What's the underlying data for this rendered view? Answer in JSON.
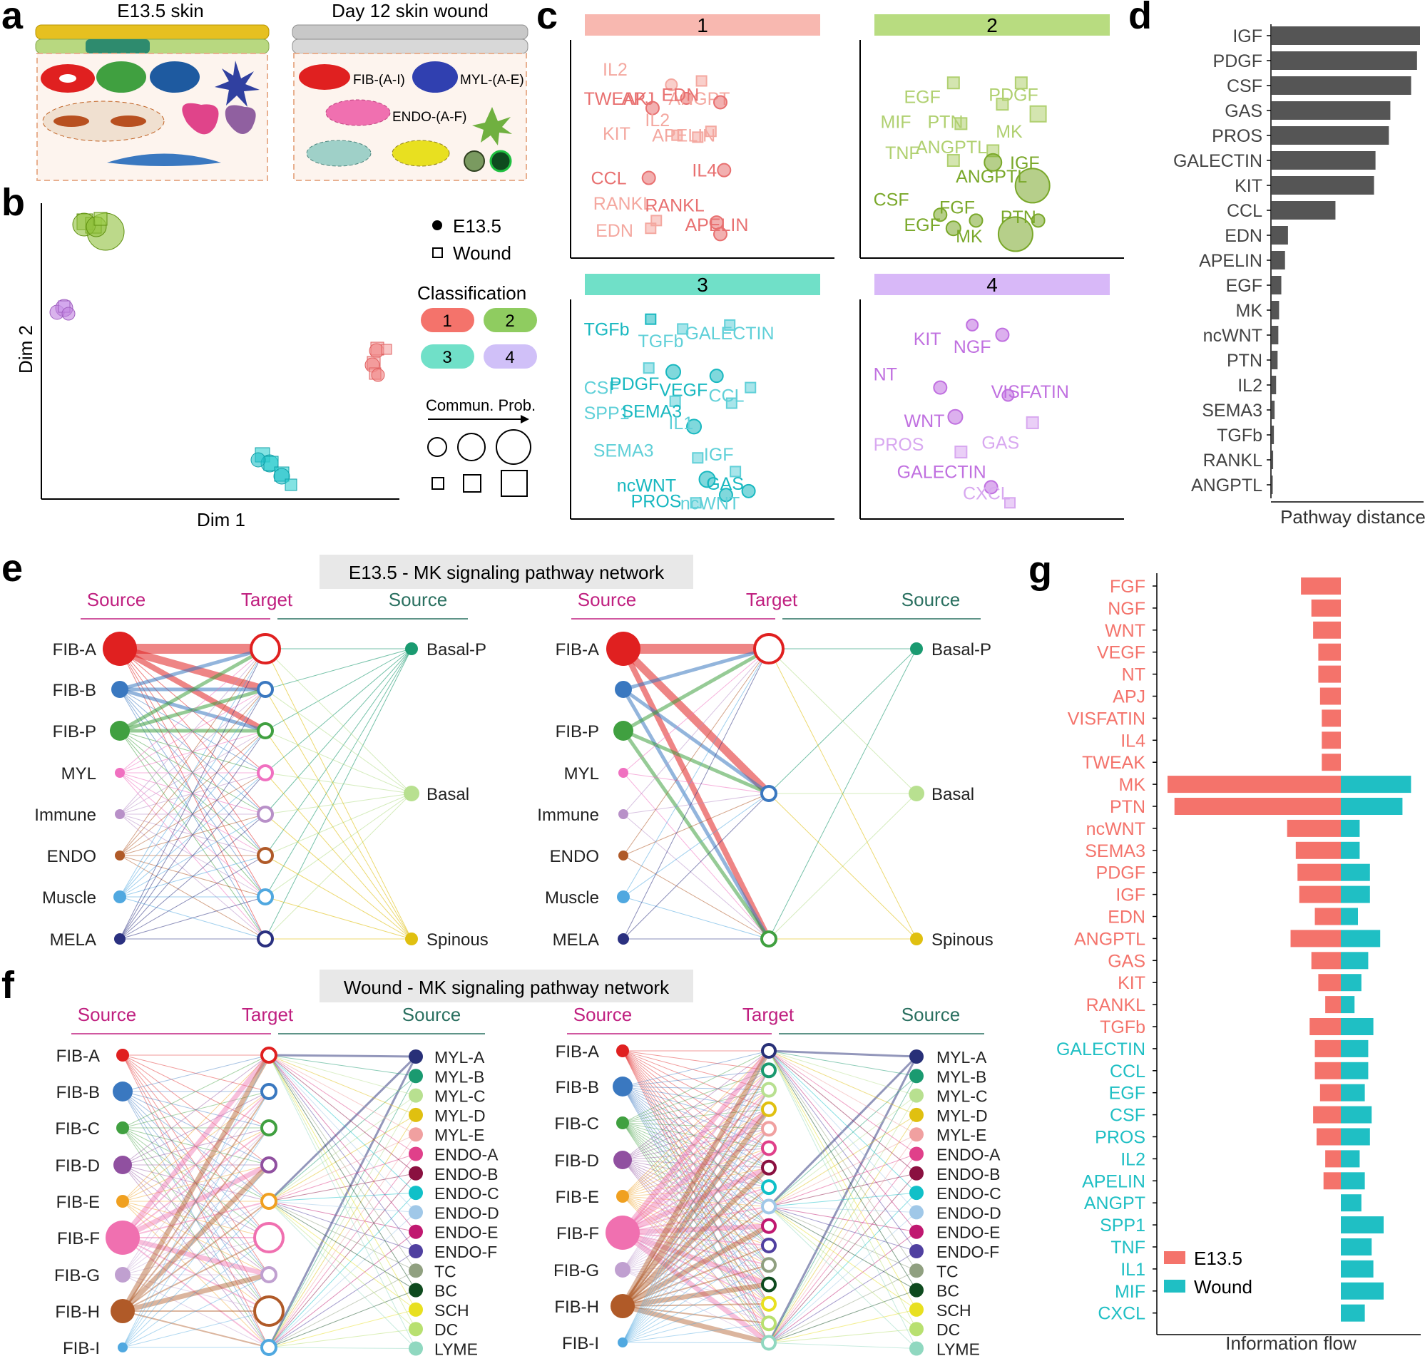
{
  "panels": {
    "a": "a",
    "b": "b",
    "c": "c",
    "d": "d",
    "e": "e",
    "f": "f",
    "g": "g"
  },
  "panel_a": {
    "left_title": "E13.5 skin",
    "right_title": "Day 12 skin wound",
    "labels": [
      "FIB-(A-I)",
      "MYL-(A-E)",
      "ENDO-(A-F)"
    ]
  },
  "panel_b": {
    "xlabel": "Dim 1",
    "ylabel": "Dim 2",
    "legend_e135": "E13.5",
    "legend_wound": "Wound",
    "classification_title": "Classification",
    "classes": [
      "1",
      "2",
      "3",
      "4"
    ],
    "comm_prob_title": "Commun. Prob."
  },
  "panel_c": {
    "groups": [
      {
        "title": "1",
        "color": "#f08080",
        "points": [
          {
            "label": "IL2",
            "shape": "circle",
            "light": true
          },
          {
            "label": "TWEAK",
            "shape": "circle",
            "light": false
          },
          {
            "label": "APJ",
            "shape": "circle",
            "light": false
          },
          {
            "label": "ANGPT",
            "shape": "square",
            "light": true
          },
          {
            "label": "EDN",
            "shape": "circle",
            "light": false
          },
          {
            "label": "IL2",
            "shape": "square",
            "light": true
          },
          {
            "label": "KIT",
            "shape": "square",
            "light": true
          },
          {
            "label": "APELIN",
            "shape": "square",
            "light": true
          },
          {
            "label": "CCL",
            "shape": "circle",
            "light": false
          },
          {
            "label": "IL4",
            "shape": "circle",
            "light": false
          },
          {
            "label": "RANKL",
            "shape": "square",
            "light": true
          },
          {
            "label": "RANKL",
            "shape": "circle",
            "light": false
          },
          {
            "label": "EDN",
            "shape": "square",
            "light": true
          },
          {
            "label": "APELIN",
            "shape": "circle",
            "light": false
          }
        ]
      },
      {
        "title": "2",
        "color": "#8fbf3c",
        "points": [
          {
            "label": "EGF",
            "shape": "square",
            "light": true
          },
          {
            "label": "PDGF",
            "shape": "square",
            "light": true
          },
          {
            "label": "MIF",
            "shape": "square",
            "light": true
          },
          {
            "label": "PTN",
            "shape": "square",
            "light": true
          },
          {
            "label": "MK",
            "shape": "square",
            "light": true
          },
          {
            "label": "TNF",
            "shape": "square",
            "light": true
          },
          {
            "label": "ANGPTL",
            "shape": "square",
            "light": true
          },
          {
            "label": "ANGPTL",
            "shape": "circle",
            "light": false
          },
          {
            "label": "IGF",
            "shape": "circle",
            "light": false
          },
          {
            "label": "CSF",
            "shape": "circle",
            "light": false
          },
          {
            "label": "FGF",
            "shape": "circle",
            "light": false
          },
          {
            "label": "EGF",
            "shape": "circle",
            "light": false
          },
          {
            "label": "PTN",
            "shape": "circle",
            "light": false
          },
          {
            "label": "MK",
            "shape": "circle",
            "light": false
          }
        ]
      },
      {
        "title": "3",
        "color": "#20c0c8",
        "points": [
          {
            "label": "TGFb",
            "shape": "square",
            "light": false
          },
          {
            "label": "TGFb",
            "shape": "square",
            "light": true
          },
          {
            "label": "GALECTIN",
            "shape": "square",
            "light": true
          },
          {
            "label": "CSF",
            "shape": "square",
            "light": true
          },
          {
            "label": "PDGF",
            "shape": "circle",
            "light": false
          },
          {
            "label": "VEGF",
            "shape": "circle",
            "light": false
          },
          {
            "label": "CCL",
            "shape": "square",
            "light": true
          },
          {
            "label": "SPP1",
            "shape": "square",
            "light": true
          },
          {
            "label": "SEMA3",
            "shape": "circle",
            "light": false
          },
          {
            "label": "IL1",
            "shape": "square",
            "light": true
          },
          {
            "label": "SEMA3",
            "shape": "square",
            "light": true
          },
          {
            "label": "IGF",
            "shape": "square",
            "light": true
          },
          {
            "label": "ncWNT",
            "shape": "circle",
            "light": false
          },
          {
            "label": "GAS",
            "shape": "circle",
            "light": false
          },
          {
            "label": "PROS",
            "shape": "circle",
            "light": false
          },
          {
            "label": "ncWNT",
            "shape": "square",
            "light": true
          }
        ]
      },
      {
        "title": "4",
        "color": "#c080e0",
        "points": [
          {
            "label": "KIT",
            "shape": "circle",
            "light": false
          },
          {
            "label": "NGF",
            "shape": "circle",
            "light": false
          },
          {
            "label": "NT",
            "shape": "circle",
            "light": false
          },
          {
            "label": "VISFATIN",
            "shape": "circle",
            "light": false
          },
          {
            "label": "WNT",
            "shape": "circle",
            "light": false
          },
          {
            "label": "GAS",
            "shape": "square",
            "light": true
          },
          {
            "label": "PROS",
            "shape": "square",
            "light": true
          },
          {
            "label": "GALECTIN",
            "shape": "circle",
            "light": false
          },
          {
            "label": "CXCL",
            "shape": "square",
            "light": true
          }
        ]
      }
    ]
  },
  "chart_data": [
    {
      "type": "bar",
      "panel": "d",
      "orientation": "horizontal",
      "categories": [
        "IGF",
        "PDGF",
        "CSF",
        "GAS",
        "PROS",
        "GALECTIN",
        "KIT",
        "CCL",
        "EDN",
        "APELIN",
        "EGF",
        "MK",
        "ncWNT",
        "PTN",
        "IL2",
        "SEMA3",
        "TGFb",
        "RANKL",
        "ANGPTL"
      ],
      "values": [
        1.0,
        0.98,
        0.94,
        0.8,
        0.79,
        0.7,
        0.69,
        0.43,
        0.11,
        0.09,
        0.065,
        0.05,
        0.045,
        0.04,
        0.03,
        0.02,
        0.015,
        0.01,
        0.005
      ],
      "xlabel": "Pathway distance",
      "ylabel": "",
      "color": "#555555"
    },
    {
      "type": "bar",
      "panel": "g",
      "orientation": "horizontal-diverging",
      "categories": [
        "FGF",
        "NGF",
        "WNT",
        "VEGF",
        "NT",
        "APJ",
        "VISFATIN",
        "IL4",
        "TWEAK",
        "MK",
        "PTN",
        "ncWNT",
        "SEMA3",
        "PDGF",
        "IGF",
        "EDN",
        "ANGPTL",
        "GAS",
        "KIT",
        "RANKL",
        "TGFb",
        "GALECTIN",
        "CCL",
        "EGF",
        "CSF",
        "PROS",
        "IL2",
        "APELIN",
        "ANGPT",
        "SPP1",
        "TNF",
        "IL1",
        "MIF",
        "CXCL"
      ],
      "series": [
        {
          "name": "E13.5",
          "color": "#f4736b",
          "values": [
            0.23,
            0.17,
            0.16,
            0.13,
            0.13,
            0.12,
            0.11,
            0.11,
            0.11,
            1.0,
            0.96,
            0.31,
            0.26,
            0.25,
            0.24,
            0.15,
            0.29,
            0.17,
            0.13,
            0.09,
            0.18,
            0.15,
            0.15,
            0.12,
            0.16,
            0.14,
            0.09,
            0.1,
            0,
            0,
            0,
            0,
            0,
            0
          ]
        },
        {
          "name": "Wound",
          "color": "#1fbfc4",
          "values": [
            0,
            0,
            0,
            0,
            0,
            0,
            0,
            0,
            0,
            0.41,
            0.36,
            0.11,
            0.11,
            0.17,
            0.17,
            0.1,
            0.23,
            0.16,
            0.12,
            0.08,
            0.19,
            0.16,
            0.16,
            0.14,
            0.18,
            0.17,
            0.11,
            0.14,
            0.12,
            0.25,
            0.18,
            0.19,
            0.25,
            0.14
          ]
        }
      ],
      "category_colors": {
        "e135_specific_to": 20,
        "e135_color": "#f4736b",
        "wound_color": "#1fbfc4"
      },
      "xlabel": "Information flow",
      "ylabel": ""
    }
  ],
  "panel_e": {
    "title": "E13.5 - MK signaling pathway network",
    "source_label": "Source",
    "target_label": "Target",
    "left_sources": [
      "FIB-A",
      "FIB-B",
      "FIB-P",
      "MYL",
      "Immune",
      "ENDO",
      "Muscle",
      "MELA"
    ],
    "right_sources_left": [
      "FIB-A",
      "",
      "FIB-P",
      "MYL",
      "Immune",
      "ENDO",
      "Muscle",
      "MELA"
    ],
    "right_targets": [
      "Basal-P",
      "Basal",
      "Spinous"
    ]
  },
  "panel_f": {
    "title": "Wound - MK signaling pathway network",
    "source_label": "Source",
    "target_label": "Target",
    "left_sources": [
      "FIB-A",
      "FIB-B",
      "FIB-C",
      "FIB-D",
      "FIB-E",
      "FIB-F",
      "FIB-G",
      "FIB-H",
      "FIB-I"
    ],
    "right_sources": [
      "MYL-A",
      "MYL-B",
      "MYL-C",
      "MYL-D",
      "MYL-E",
      "ENDO-A",
      "ENDO-B",
      "ENDO-C",
      "ENDO-D",
      "ENDO-E",
      "ENDO-F",
      "TC",
      "BC",
      "SCH",
      "DC",
      "LYME"
    ]
  },
  "legend_g": {
    "e135": "E13.5",
    "wound": "Wound"
  }
}
